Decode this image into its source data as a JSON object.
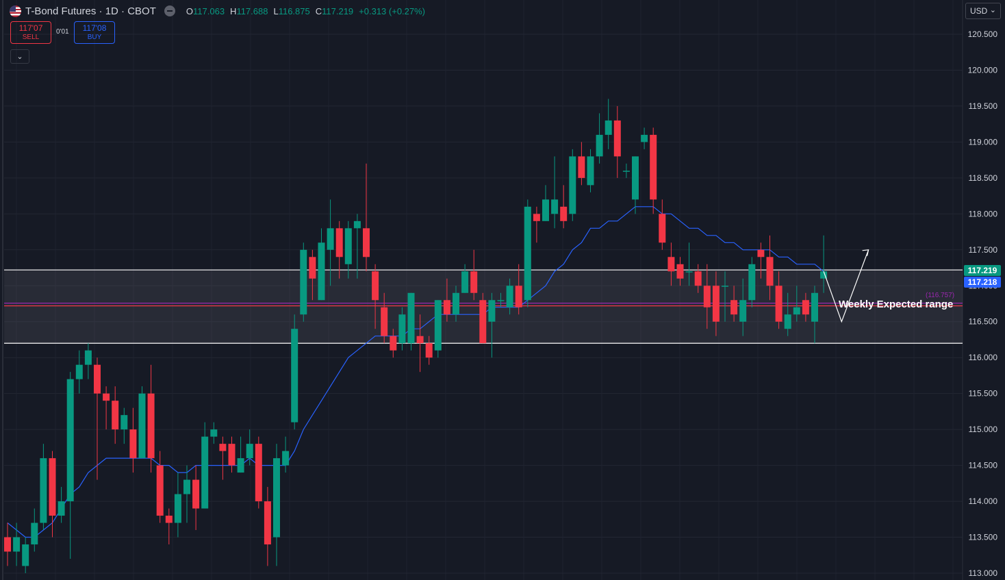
{
  "header": {
    "symbol": "T-Bond Futures · 1D · CBOT",
    "ohlc": {
      "o_label": "O",
      "o": "117.063",
      "h_label": "H",
      "h": "117.688",
      "l_label": "L",
      "l": "116.875",
      "c_label": "C",
      "c": "117.219",
      "change": "+0.313 (+0.27%)"
    }
  },
  "trade": {
    "sell_price": "117'07",
    "sell_label": "SELL",
    "spread": "0'01",
    "buy_price": "117'08",
    "buy_label": "BUY"
  },
  "collapse_icon": "⌄",
  "currency": {
    "label": "USD",
    "icon": "chevron-down-icon"
  },
  "price_tags": {
    "last": "117.219",
    "ask": "117.218"
  },
  "annotation": {
    "text": "Weekly Expected range",
    "level_label": "(116.757)"
  },
  "colors": {
    "up": "#089981",
    "down": "#f23645",
    "ma": "#2962ff",
    "level": "#9c27b0",
    "background": "#161a25"
  },
  "chart_data": {
    "type": "candlestick",
    "title": "T-Bond Futures · 1D · CBOT",
    "ylim": [
      113.0,
      120.75
    ],
    "y_ticks": [
      "120.500",
      "120.000",
      "119.500",
      "119.000",
      "118.500",
      "118.000",
      "117.500",
      "117.000",
      "116.500",
      "116.000",
      "115.500",
      "115.000",
      "114.500",
      "114.000",
      "113.500",
      "113.000"
    ],
    "grid": true,
    "candles": [
      [
        113.5,
        113.3,
        113.7,
        113.1
      ],
      [
        113.3,
        113.5,
        113.7,
        113.1
      ],
      [
        113.1,
        113.4,
        113.5,
        113.0
      ],
      [
        113.4,
        113.7,
        113.9,
        113.3
      ],
      [
        113.7,
        114.6,
        114.8,
        113.6
      ],
      [
        114.6,
        113.8,
        114.7,
        113.5
      ],
      [
        113.8,
        114.0,
        114.2,
        113.7
      ],
      [
        114.0,
        115.7,
        115.8,
        113.2
      ],
      [
        115.7,
        115.9,
        116.1,
        115.5
      ],
      [
        115.9,
        116.1,
        116.2,
        115.7
      ],
      [
        115.9,
        115.5,
        116.0,
        114.3
      ],
      [
        115.5,
        115.4,
        115.6,
        115.0
      ],
      [
        115.4,
        115.0,
        115.6,
        114.8
      ],
      [
        115.0,
        115.2,
        115.3,
        114.8
      ],
      [
        115.0,
        114.6,
        115.3,
        114.4
      ],
      [
        114.6,
        115.5,
        115.6,
        114.6
      ],
      [
        115.5,
        114.6,
        115.9,
        114.4
      ],
      [
        114.5,
        113.8,
        114.7,
        113.7
      ],
      [
        113.8,
        113.7,
        113.9,
        113.4
      ],
      [
        113.7,
        114.1,
        114.4,
        113.5
      ],
      [
        114.1,
        114.3,
        114.5,
        113.7
      ],
      [
        114.3,
        113.9,
        114.5,
        113.6
      ],
      [
        113.9,
        114.9,
        115.1,
        113.9
      ],
      [
        114.9,
        115.0,
        115.1,
        114.8
      ],
      [
        114.8,
        114.7,
        114.9,
        114.3
      ],
      [
        114.8,
        114.5,
        114.9,
        114.4
      ],
      [
        114.4,
        114.6,
        114.9,
        114.4
      ],
      [
        114.6,
        114.8,
        115.0,
        114.5
      ],
      [
        114.8,
        114.0,
        114.9,
        113.9
      ],
      [
        114.0,
        113.4,
        114.2,
        113.1
      ],
      [
        113.5,
        114.6,
        114.8,
        113.1
      ],
      [
        114.5,
        114.7,
        114.9,
        114.4
      ],
      [
        115.1,
        116.4,
        116.6,
        115.0
      ],
      [
        116.6,
        117.5,
        117.6,
        116.5
      ],
      [
        117.4,
        117.1,
        117.5,
        116.8
      ],
      [
        116.8,
        117.6,
        117.8,
        116.8
      ],
      [
        117.5,
        117.8,
        118.2,
        117.0
      ],
      [
        117.8,
        117.4,
        117.9,
        117.1
      ],
      [
        117.3,
        117.8,
        117.9,
        117.1
      ],
      [
        117.8,
        117.9,
        118.0,
        117.1
      ],
      [
        117.8,
        117.4,
        118.7,
        117.2
      ],
      [
        117.2,
        116.8,
        117.3,
        116.4
      ],
      [
        116.7,
        116.3,
        116.9,
        116.2
      ],
      [
        116.3,
        116.1,
        116.4,
        116.0
      ],
      [
        116.2,
        116.6,
        116.7,
        116.1
      ],
      [
        116.2,
        116.9,
        116.9,
        116.1
      ],
      [
        116.3,
        116.2,
        116.6,
        115.8
      ],
      [
        116.2,
        116.0,
        116.3,
        115.9
      ],
      [
        116.1,
        116.8,
        116.8,
        116.0
      ],
      [
        116.8,
        116.6,
        117.1,
        116.5
      ],
      [
        116.6,
        116.9,
        117.0,
        116.5
      ],
      [
        116.9,
        117.2,
        117.3,
        116.9
      ],
      [
        117.2,
        116.9,
        117.5,
        116.8
      ],
      [
        116.8,
        116.2,
        116.9,
        116.2
      ],
      [
        116.5,
        116.8,
        116.9,
        116.0
      ],
      [
        116.8,
        116.8,
        116.9,
        116.7
      ],
      [
        116.7,
        117.0,
        117.1,
        116.6
      ],
      [
        117.0,
        116.7,
        117.3,
        116.6
      ],
      [
        116.8,
        118.1,
        118.2,
        116.7
      ],
      [
        118.0,
        117.9,
        118.1,
        117.6
      ],
      [
        117.9,
        118.2,
        118.4,
        117.9
      ],
      [
        118.0,
        118.2,
        118.8,
        117.8
      ],
      [
        118.1,
        117.9,
        118.4,
        117.8
      ],
      [
        118.0,
        118.8,
        118.9,
        117.9
      ],
      [
        118.8,
        118.5,
        119.0,
        118.4
      ],
      [
        118.4,
        118.8,
        118.9,
        118.3
      ],
      [
        118.8,
        119.1,
        119.4,
        118.7
      ],
      [
        119.1,
        119.3,
        119.6,
        118.9
      ],
      [
        119.3,
        118.8,
        119.5,
        118.5
      ],
      [
        118.6,
        118.6,
        118.7,
        118.5
      ],
      [
        118.2,
        118.8,
        118.8,
        118.0
      ],
      [
        119.0,
        119.1,
        119.2,
        118.9
      ],
      [
        119.1,
        118.2,
        119.2,
        118.0
      ],
      [
        118.0,
        117.6,
        118.2,
        117.5
      ],
      [
        117.4,
        117.2,
        117.6,
        117.0
      ],
      [
        117.3,
        117.1,
        117.4,
        117.0
      ],
      [
        117.2,
        117.2,
        117.6,
        117.0
      ],
      [
        117.2,
        117.0,
        117.3,
        116.9
      ],
      [
        117.0,
        116.7,
        117.3,
        116.4
      ],
      [
        117.0,
        116.5,
        117.2,
        116.3
      ],
      [
        117.0,
        117.0,
        117.2,
        116.5
      ],
      [
        116.8,
        116.6,
        117.0,
        116.5
      ],
      [
        116.5,
        116.8,
        117.1,
        116.3
      ],
      [
        116.8,
        117.3,
        117.4,
        116.7
      ],
      [
        117.5,
        117.4,
        117.6,
        117.1
      ],
      [
        117.4,
        117.0,
        117.7,
        116.8
      ],
      [
        117.0,
        116.5,
        117.2,
        116.4
      ],
      [
        116.4,
        116.6,
        116.9,
        116.3
      ],
      [
        116.6,
        116.7,
        117.0,
        116.5
      ],
      [
        116.8,
        116.6,
        116.9,
        116.5
      ],
      [
        116.5,
        116.9,
        117.0,
        116.2
      ],
      [
        117.1,
        117.2,
        117.7,
        116.9
      ]
    ],
    "moving_average": [
      113.7,
      113.6,
      113.5,
      113.5,
      113.6,
      113.7,
      113.9,
      114.1,
      114.2,
      114.4,
      114.5,
      114.6,
      114.6,
      114.6,
      114.6,
      114.6,
      114.6,
      114.5,
      114.5,
      114.4,
      114.4,
      114.5,
      114.5,
      114.5,
      114.5,
      114.5,
      114.5,
      114.6,
      114.5,
      114.5,
      114.5,
      114.5,
      114.7,
      115.0,
      115.2,
      115.4,
      115.6,
      115.8,
      116.0,
      116.1,
      116.2,
      116.3,
      116.3,
      116.3,
      116.3,
      116.4,
      116.4,
      116.5,
      116.6,
      116.6,
      116.6,
      116.6,
      116.6,
      116.6,
      116.7,
      116.7,
      116.7,
      116.7,
      116.8,
      116.9,
      117.0,
      117.2,
      117.3,
      117.5,
      117.6,
      117.8,
      117.8,
      117.9,
      117.9,
      118.0,
      118.1,
      118.1,
      118.1,
      118.0,
      118.0,
      117.9,
      117.8,
      117.8,
      117.7,
      117.7,
      117.6,
      117.6,
      117.5,
      117.5,
      117.5,
      117.5,
      117.4,
      117.4,
      117.3,
      117.3,
      117.3,
      117.2
    ],
    "lines": [
      {
        "kind": "horizontal",
        "price": 117.22,
        "color": "#ffffff"
      },
      {
        "kind": "horizontal",
        "price": 116.2,
        "color": "#ffffff"
      },
      {
        "kind": "horizontal",
        "price": 116.757,
        "color": "#9c27b0"
      },
      {
        "kind": "horizontal",
        "price": 116.72,
        "color": "#f23645"
      }
    ],
    "range_box": {
      "top": 117.22,
      "bottom": 116.2
    },
    "projection": [
      {
        "bar": 91,
        "price": 117.2
      },
      {
        "bar": 93,
        "price": 116.5
      },
      {
        "bar": 96,
        "price": 117.5
      }
    ]
  }
}
